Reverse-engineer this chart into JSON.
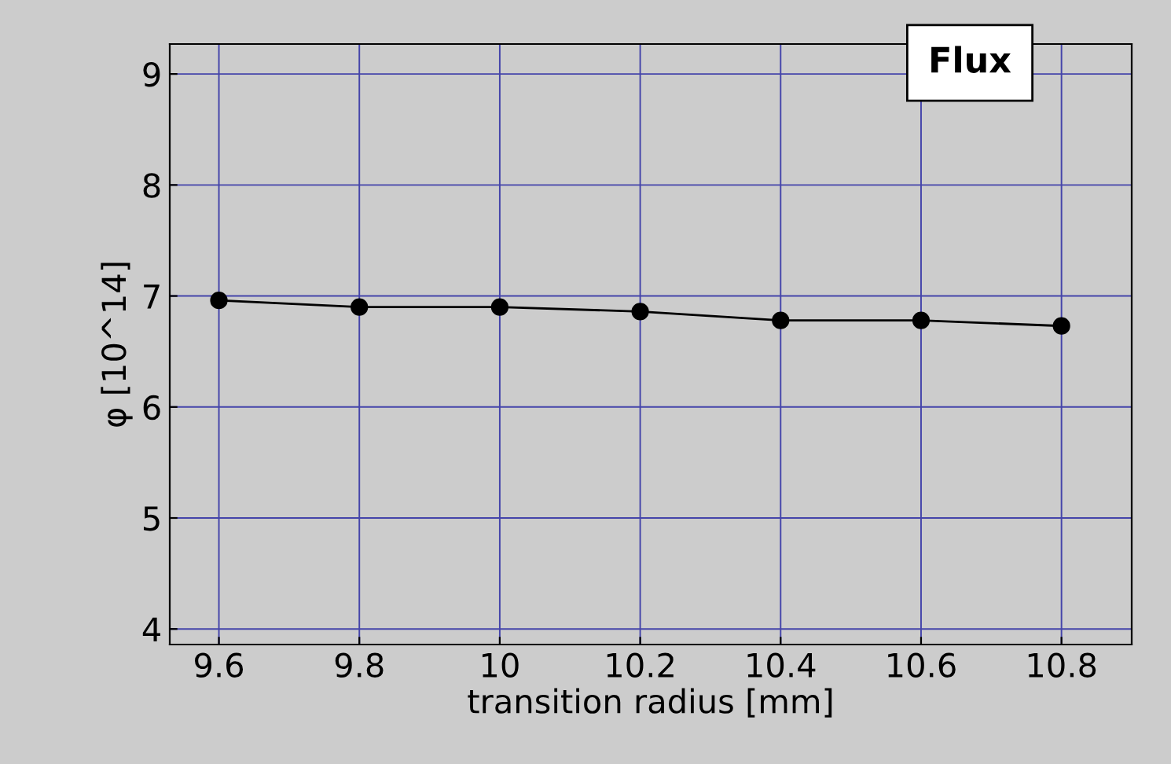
{
  "chart_data": {
    "type": "line",
    "title": "Flux",
    "xlabel": "transition radius [mm]",
    "ylabel": "φ [10^14]",
    "x": [
      9.6,
      9.8,
      10,
      10.2,
      10.4,
      10.6,
      10.8
    ],
    "series": [
      {
        "color": "#000000",
        "values": [
          6.96,
          6.9,
          6.9,
          6.86,
          6.78,
          6.78,
          6.73
        ]
      }
    ],
    "xlim": [
      9.53,
      10.9
    ],
    "ylim": [
      3.86,
      9.27
    ],
    "xticks": [
      9.6,
      9.8,
      10,
      10.2,
      10.4,
      10.6,
      10.8
    ],
    "yticks": [
      4,
      5,
      6,
      7,
      8,
      9
    ],
    "grid": true,
    "marker": "circle",
    "line_style": "solid"
  }
}
